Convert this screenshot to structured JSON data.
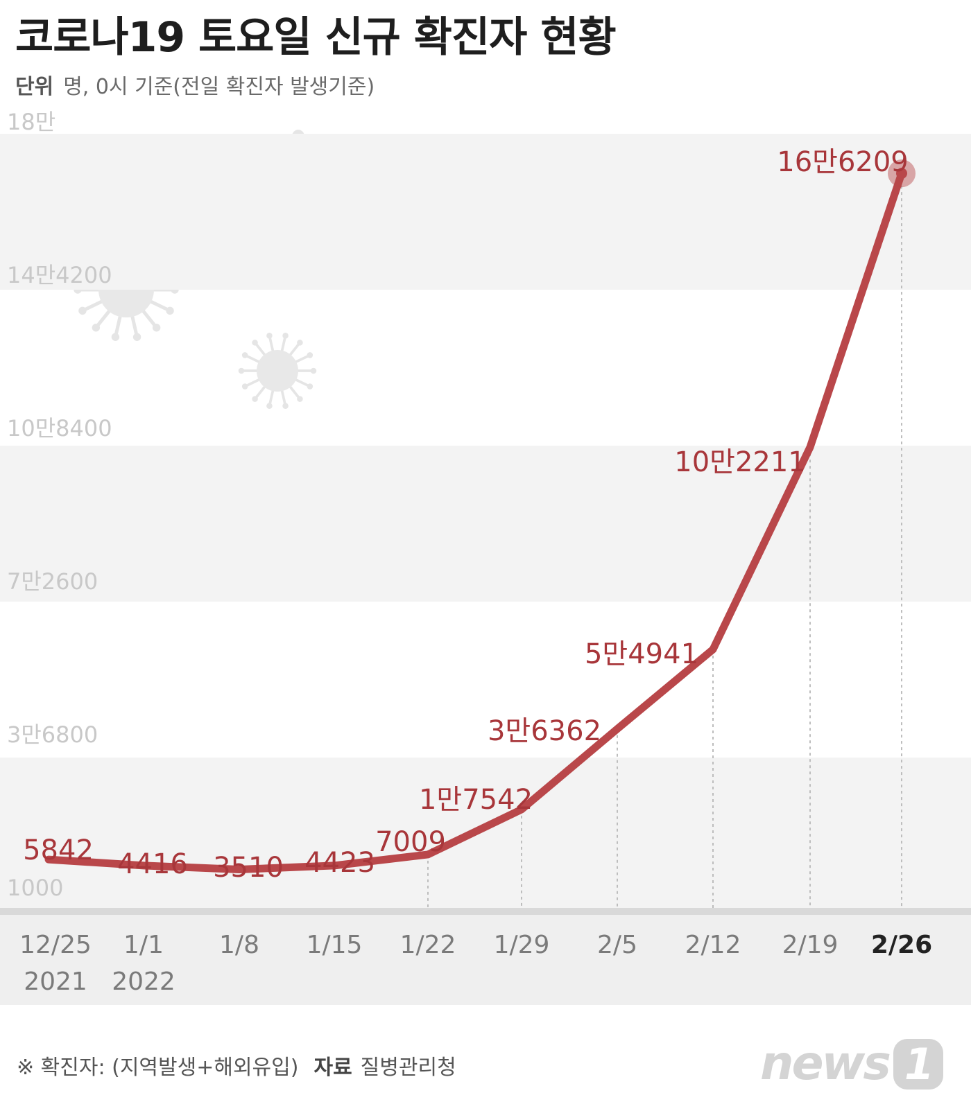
{
  "title": "코로나19 토요일 신규 확진자 현황",
  "subtitle": {
    "label": "단위",
    "text": "명, 0시 기준(전일 확진자 발생기준)"
  },
  "footer": {
    "note": "※ 확진자: (지역발생+해외유입)",
    "source_label": "자료",
    "source": "질병관리청"
  },
  "logo": {
    "text": "news",
    "badge": "1"
  },
  "colors": {
    "line": "#b9474a",
    "label": "#a8363a",
    "band": "#f3f3f3",
    "axis": "#d9d9d9",
    "gridtext": "#c8c8c8"
  },
  "chart_data": {
    "type": "line",
    "ylim": [
      0,
      180000
    ],
    "yticks": [
      {
        "value": 180000,
        "label": "18만"
      },
      {
        "value": 144200,
        "label": "14만4200"
      },
      {
        "value": 108400,
        "label": "10만8400"
      },
      {
        "value": 72600,
        "label": "7만2600"
      },
      {
        "value": 36800,
        "label": "3만6800"
      },
      {
        "value": 1000,
        "label": "1000"
      }
    ],
    "categories": [
      "12/25",
      "1/1",
      "1/8",
      "1/15",
      "1/22",
      "1/29",
      "2/5",
      "2/12",
      "2/19",
      "2/26"
    ],
    "category_years": [
      "2021",
      "2022",
      "",
      "",
      "",
      "",
      "",
      "",
      "",
      ""
    ],
    "highlight_category": "2/26",
    "values": [
      5842,
      4416,
      3510,
      4423,
      7009,
      17542,
      36362,
      54941,
      102211,
      166209
    ],
    "value_labels": [
      "5842",
      "4416",
      "3510",
      "4423",
      "7009",
      "1만7542",
      "3만6362",
      "5만4941",
      "10만2211",
      "16만6209"
    ]
  }
}
